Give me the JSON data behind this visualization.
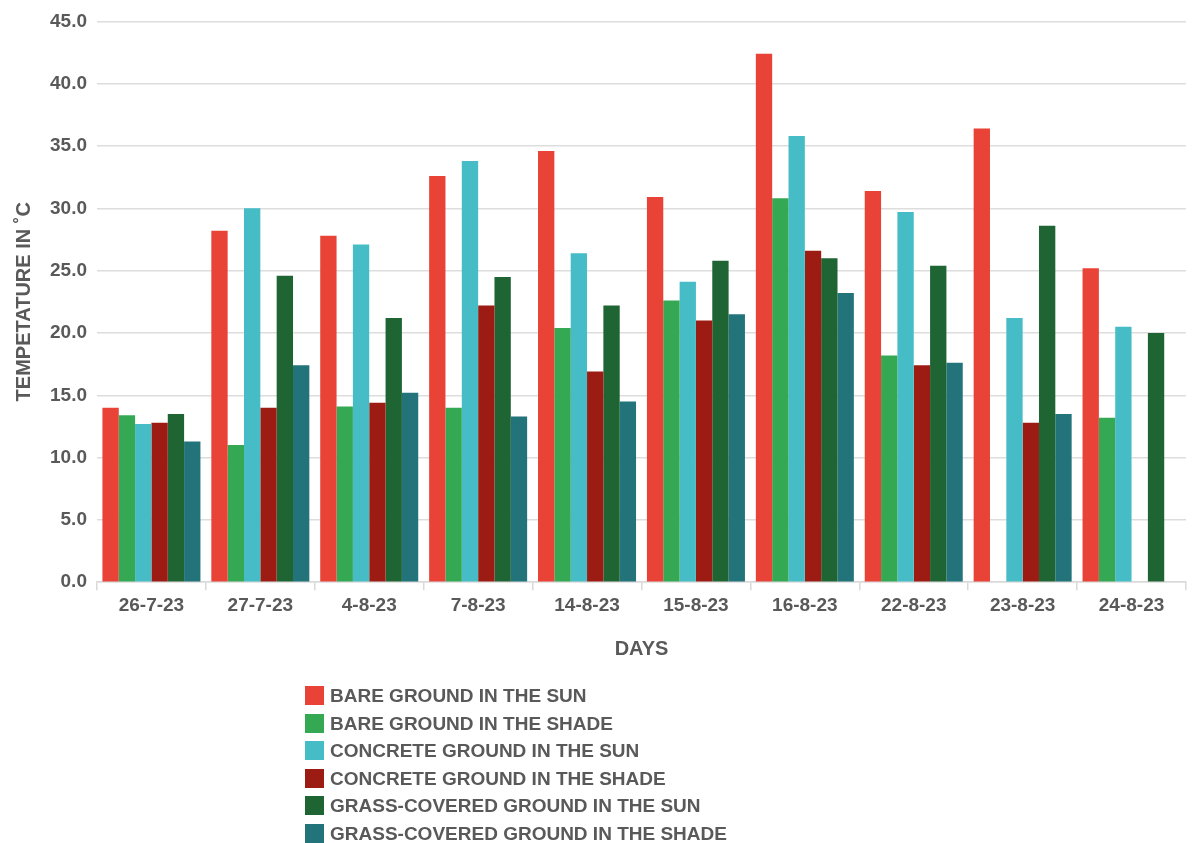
{
  "chart_data": {
    "type": "bar",
    "xlabel": "DAYS",
    "ylabel": "TEMPETATURE IN ˚C",
    "categories": [
      "26-7-23",
      "27-7-23",
      "4-8-23",
      "7-8-23",
      "14-8-23",
      "15-8-23",
      "16-8-23",
      "22-8-23",
      "23-8-23",
      "24-8-23"
    ],
    "series": [
      {
        "name": "BARE GROUND IN THE SUN",
        "color": "#e84336",
        "values": [
          14.0,
          28.2,
          27.8,
          32.6,
          34.6,
          30.9,
          42.4,
          31.4,
          36.4,
          25.2
        ]
      },
      {
        "name": "BARE GROUND IN THE SHADE",
        "color": "#34a853",
        "values": [
          13.4,
          11.0,
          14.1,
          14.0,
          20.4,
          22.6,
          30.8,
          18.2,
          null,
          13.2
        ]
      },
      {
        "name": "CONCRETE GROUND IN THE SUN",
        "color": "#46bdc6",
        "values": [
          12.7,
          30.0,
          27.1,
          33.8,
          26.4,
          24.1,
          35.8,
          29.7,
          21.2,
          20.5
        ]
      },
      {
        "name": "CONCRETE GROUND IN THE SHADE",
        "color": "#9c1c13",
        "values": [
          12.8,
          14.0,
          14.4,
          22.2,
          16.9,
          21.0,
          26.6,
          17.4,
          12.8,
          null
        ]
      },
      {
        "name": "GRASS-COVERED GROUND IN THE SUN",
        "color": "#1f6433",
        "values": [
          13.5,
          24.6,
          21.2,
          24.5,
          22.2,
          25.8,
          26.0,
          25.4,
          28.6,
          20.0
        ]
      },
      {
        "name": "GRASS-COVERED GROUND IN THE SHADE",
        "color": "#23737a",
        "values": [
          11.3,
          17.4,
          15.2,
          13.3,
          14.5,
          21.5,
          23.2,
          17.6,
          13.5,
          null
        ]
      }
    ],
    "ylim": [
      0,
      45
    ],
    "yticks": [
      {
        "value": 0,
        "label": "0.0"
      },
      {
        "value": 5,
        "label": "5.0"
      },
      {
        "value": 10,
        "label": "10.0"
      },
      {
        "value": 15,
        "label": "15.0"
      },
      {
        "value": 20,
        "label": "20.0"
      },
      {
        "value": 25,
        "label": "25.0"
      },
      {
        "value": 30,
        "label": "30.0"
      },
      {
        "value": 35,
        "label": "35.0"
      },
      {
        "value": 40,
        "label": "40.0"
      },
      {
        "value": 45,
        "label": "45.0"
      }
    ],
    "grid": "y",
    "legend": "bottom"
  }
}
